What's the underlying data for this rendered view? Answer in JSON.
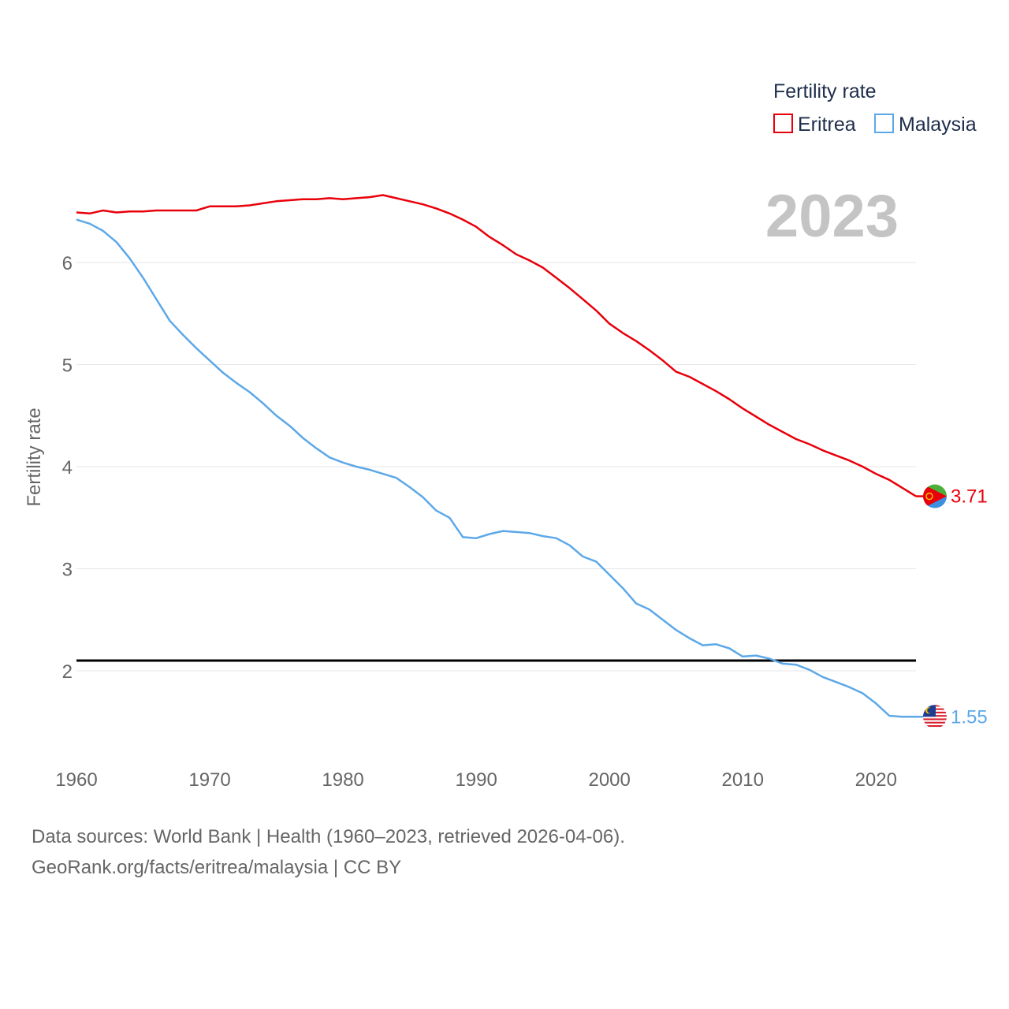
{
  "chart_data": {
    "type": "line",
    "legend_title": "Fertility rate",
    "ylabel": "Fertility rate",
    "year_label": "2023",
    "x": [
      1960,
      1961,
      1962,
      1963,
      1964,
      1965,
      1966,
      1967,
      1968,
      1969,
      1970,
      1971,
      1972,
      1973,
      1974,
      1975,
      1976,
      1977,
      1978,
      1979,
      1980,
      1981,
      1982,
      1983,
      1984,
      1985,
      1986,
      1987,
      1988,
      1989,
      1990,
      1991,
      1992,
      1993,
      1994,
      1995,
      1996,
      1997,
      1998,
      1999,
      2000,
      2001,
      2002,
      2003,
      2004,
      2005,
      2006,
      2007,
      2008,
      2009,
      2010,
      2011,
      2012,
      2013,
      2014,
      2015,
      2016,
      2017,
      2018,
      2019,
      2020,
      2021,
      2022,
      2023
    ],
    "x_ticks": [
      "1960",
      "1970",
      "1980",
      "1990",
      "2000",
      "2010",
      "2020"
    ],
    "x_tick_values": [
      1960,
      1970,
      1980,
      1990,
      2000,
      2010,
      2020
    ],
    "y_ticks": [
      "2",
      "3",
      "4",
      "5",
      "6"
    ],
    "y_tick_values": [
      2,
      3,
      4,
      5,
      6
    ],
    "xlim": [
      1960,
      2023
    ],
    "ylim": [
      1.2,
      7.0
    ],
    "reference_line": 2.1,
    "series": [
      {
        "name": "Eritrea",
        "color": "#e8000b",
        "end_label": "3.71",
        "flag_icon": "eritrea-flag-icon",
        "values": [
          6.49,
          6.48,
          6.51,
          6.49,
          6.5,
          6.5,
          6.51,
          6.51,
          6.51,
          6.51,
          6.55,
          6.55,
          6.55,
          6.56,
          6.58,
          6.6,
          6.61,
          6.62,
          6.62,
          6.63,
          6.62,
          6.63,
          6.64,
          6.66,
          6.63,
          6.6,
          6.57,
          6.53,
          6.48,
          6.42,
          6.35,
          6.25,
          6.17,
          6.08,
          6.02,
          5.95,
          5.85,
          5.75,
          5.64,
          5.53,
          5.4,
          5.31,
          5.23,
          5.14,
          5.04,
          4.93,
          4.88,
          4.81,
          4.74,
          4.66,
          4.57,
          4.49,
          4.41,
          4.34,
          4.27,
          4.22,
          4.16,
          4.11,
          4.06,
          4.0,
          3.93,
          3.87,
          3.79,
          3.71
        ]
      },
      {
        "name": "Malaysia",
        "color": "#5da8e8",
        "end_label": "1.55",
        "flag_icon": "malaysia-flag-icon",
        "values": [
          6.42,
          6.38,
          6.31,
          6.2,
          6.04,
          5.85,
          5.64,
          5.43,
          5.29,
          5.16,
          5.04,
          4.92,
          4.82,
          4.73,
          4.62,
          4.5,
          4.4,
          4.28,
          4.18,
          4.09,
          4.04,
          4.0,
          3.97,
          3.93,
          3.89,
          3.8,
          3.7,
          3.57,
          3.5,
          3.31,
          3.3,
          3.34,
          3.37,
          3.36,
          3.35,
          3.32,
          3.3,
          3.23,
          3.12,
          3.07,
          2.94,
          2.81,
          2.66,
          2.6,
          2.5,
          2.4,
          2.32,
          2.25,
          2.26,
          2.22,
          2.14,
          2.15,
          2.12,
          2.07,
          2.06,
          2.01,
          1.94,
          1.89,
          1.84,
          1.78,
          1.68,
          1.56,
          1.55,
          1.55
        ]
      }
    ]
  },
  "footer": {
    "line1": "Data sources: World Bank | Health (1960–2023, retrieved 2026-04-06).",
    "line2": "GeoRank.org/facts/eritrea/malaysia | CC BY"
  }
}
